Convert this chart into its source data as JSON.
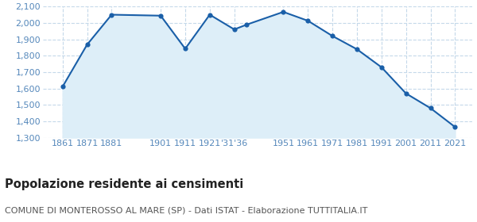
{
  "years": [
    1861,
    1871,
    1881,
    1901,
    1911,
    1921,
    1931,
    1936,
    1951,
    1961,
    1971,
    1981,
    1991,
    2001,
    2011,
    2021
  ],
  "population": [
    1611,
    1868,
    2051,
    2045,
    1843,
    2051,
    1961,
    1990,
    2068,
    2014,
    1921,
    1840,
    1730,
    1570,
    1480,
    1365
  ],
  "ylim": [
    1300,
    2100
  ],
  "yticks": [
    1300,
    1400,
    1500,
    1600,
    1700,
    1800,
    1900,
    2000,
    2100
  ],
  "line_color": "#1a5fa8",
  "fill_color": "#ddeef8",
  "marker_color": "#1a5fa8",
  "grid_color": "#c5d9ea",
  "background_color": "#ffffff",
  "label_color": "#5588bb",
  "title": "Popolazione residente ai censimenti",
  "title_fontsize": 10.5,
  "title_fontweight": "bold",
  "subtitle": "COMUNE DI MONTEROSSO AL MARE (SP) - Dati ISTAT - Elaborazione TUTTITALIA.IT",
  "subtitle_fontsize": 8.0,
  "tick_fontsize": 8.0
}
